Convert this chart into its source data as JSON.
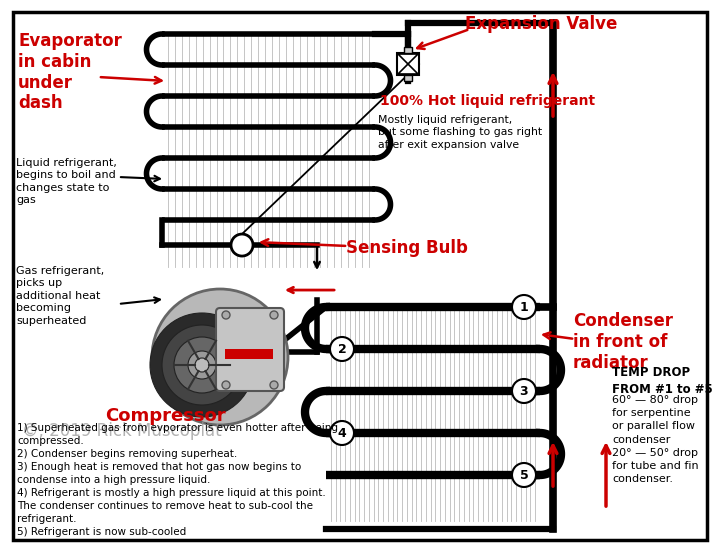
{
  "bg_color": "#ffffff",
  "evaporator_label": "Evaporator\nin cabin\nunder\ndash",
  "expansion_valve_label": "Expansion Valve",
  "hot_liquid_label": "100% Hot liquid refrigerant",
  "mostly_liquid_label": "Mostly liquid refrigerant,\nbut some flashing to gas right\nafter exit expansion valve",
  "sensing_bulb_label": "Sensing Bulb",
  "compressor_label": "Compressor",
  "condenser_label": "Condenser\nin front of\nradiator",
  "copyright_label": "©, 2019 Rick Muscoplat",
  "liquid_boil_label": "Liquid refrigerant,\nbegins to boil and\nchanges state to\ngas",
  "gas_superheat_label": "Gas refrigerant,\npicks up\nadditional heat\nbecoming\nsuperheated",
  "temp_drop_title": "TEMP DROP\nFROM #1 to #5",
  "temp_drop_body": "60° — 80° drop\nfor serpentine\nor parallel flow\ncondenser\n20° — 50° drop\nfor tube and fin\ncondenser.",
  "bottom_notes": [
    "1) Superheated gas from evporator is even hotter after being compressed.",
    "2) Condenser begins removing superheat.",
    "3) Enough heat is removed that hot gas now begins to\ncondense into a high pressure liquid.",
    "4) Refrigerant is mostly a high pressure liquid at this point.\nThe condenser continues to remove heat to sub-cool the\nrefrigerant.",
    "5) Refrigerant is now sub-cooled"
  ],
  "red": "#cc0000",
  "black": "#000000"
}
